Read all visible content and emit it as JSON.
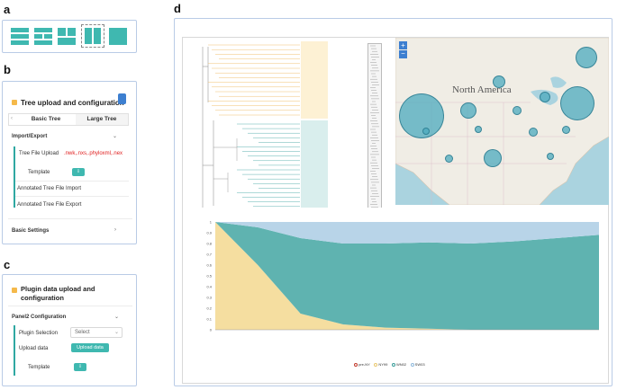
{
  "panel_labels": {
    "a": "a",
    "b": "b",
    "c": "c",
    "d": "d"
  },
  "panel_a": {
    "icons": [
      "layout-rows-icon",
      "layout-grid-icon",
      "layout-split-icon",
      "layout-columns-icon",
      "layout-single-icon"
    ]
  },
  "panel_b": {
    "title": "Tree upload and configuration",
    "tabs": [
      "Basic Tree",
      "Large Tree"
    ],
    "import_export": "Import/Export",
    "tree_file_upload": "Tree File Upload",
    "tree_file_formats": ".nwk,.nxs,.phyloxml,.nex",
    "template": "Template",
    "annotated_import": "Annotated Tree File Import",
    "annotated_export": "Annotated Tree File Export",
    "basic_settings": "Basic Settings"
  },
  "panel_c": {
    "title_line1": "Plugin data upload and",
    "title_line2": "configuration",
    "panel2_configuration": "Panel2 Configuration",
    "plugin_selection": "Plugin Selection",
    "select_placeholder": "Select",
    "upload_data": "Upload data",
    "upload_button": "Upload data",
    "template": "Template"
  },
  "panel_d": {
    "map_label": "North America",
    "zoom_in": "+",
    "zoom_out": "−",
    "map_legend": [
      "NY99",
      "WN02",
      "SW03",
      "pre-NY"
    ],
    "chart_legend": [
      "pre-NY",
      "NY99",
      "WN02",
      "SW03"
    ],
    "colors": {
      "pre_ny": "#c0392b",
      "ny99": "#f5dea0",
      "wn02": "#5fb3b0",
      "sw03": "#b8d4e8"
    }
  },
  "chart_data": {
    "type": "area",
    "title": "",
    "xlabel": "",
    "ylabel": "",
    "ylim": [
      0,
      1
    ],
    "yticks": [
      "0",
      "0.1",
      "0.2",
      "0.3",
      "0.4",
      "0.5",
      "0.6",
      "0.7",
      "0.8",
      "0.9",
      "1"
    ],
    "series": [
      {
        "name": "pre-NY",
        "values": [
          0.0,
          0.0,
          0.0,
          0.0,
          0.0,
          0.0,
          0.0,
          0.0,
          0.0,
          0.0
        ]
      },
      {
        "name": "NY99",
        "values": [
          1.0,
          0.6,
          0.15,
          0.05,
          0.02,
          0.01,
          0.0,
          0.0,
          0.0,
          0.0
        ]
      },
      {
        "name": "WN02",
        "values": [
          0.0,
          0.35,
          0.7,
          0.75,
          0.78,
          0.8,
          0.8,
          0.82,
          0.85,
          0.88
        ]
      },
      {
        "name": "SW03",
        "values": [
          0.0,
          0.05,
          0.15,
          0.2,
          0.2,
          0.19,
          0.2,
          0.18,
          0.15,
          0.12
        ]
      }
    ]
  }
}
